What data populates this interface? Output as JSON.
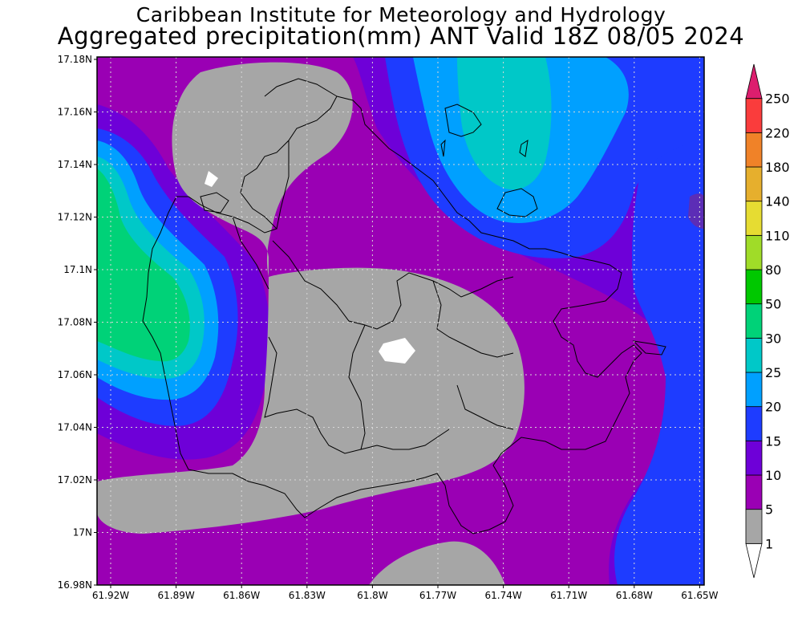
{
  "header": {
    "title_line1": "Caribbean Institute for Meteorology and Hydrology",
    "title_line2": "Aggregated precipitation(mm) ANT Valid 18Z 08/05 2024"
  },
  "map": {
    "lon_ticks": [
      "61.92W",
      "61.89W",
      "61.86W",
      "61.83W",
      "61.8W",
      "61.77W",
      "61.74W",
      "61.71W",
      "61.68W",
      "61.65W"
    ],
    "lat_ticks": [
      "17.18N",
      "17.16N",
      "17.14N",
      "17.12N",
      "17.1N",
      "17.08N",
      "17.06N",
      "17.04N",
      "17.02N",
      "17N",
      "16.98N"
    ],
    "grid": true
  },
  "colorbar": {
    "labels": [
      "1",
      "5",
      "10",
      "15",
      "20",
      "25",
      "30",
      "50",
      "80",
      "110",
      "140",
      "180",
      "220",
      "250"
    ],
    "colors": [
      "#ffffff",
      "#a6a6a6",
      "#9a00b4",
      "#6e00d8",
      "#1e3cff",
      "#00a0ff",
      "#00c8c8",
      "#00d278",
      "#00c800",
      "#a0dc28",
      "#e6dc32",
      "#e6af2d",
      "#f08228",
      "#fa3c3c",
      "#dc1e6e"
    ]
  }
}
